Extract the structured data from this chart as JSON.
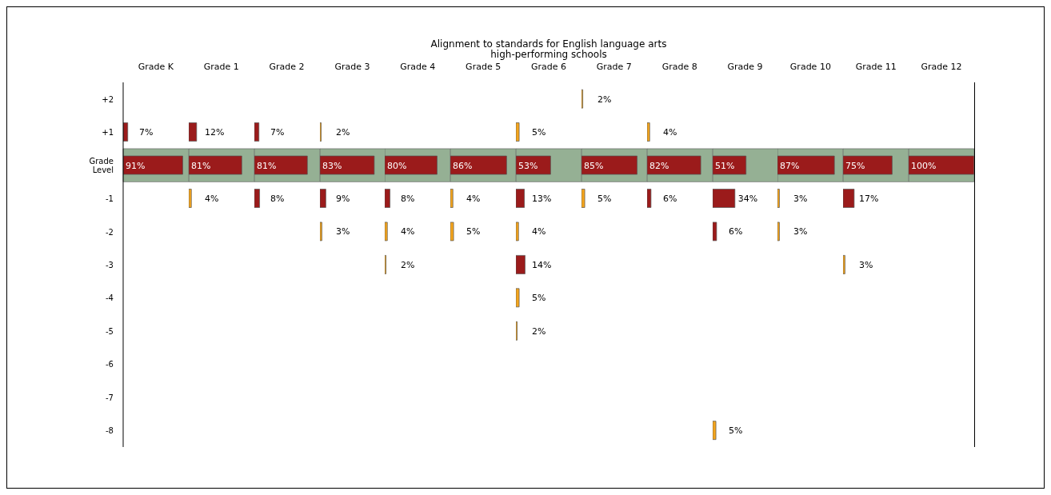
{
  "chart_data": [
    {
      "type": "bar",
      "orientation": "horizontal",
      "xlabel": "Grade K",
      "categories": [
        "+2",
        "+1",
        "Grade Level",
        "-1",
        "-2",
        "-3",
        "-4",
        "-5",
        "-6",
        "-7",
        "-8"
      ],
      "values": [
        null,
        7,
        91,
        null,
        null,
        null,
        null,
        null,
        null,
        null,
        null
      ],
      "colors": [
        null,
        "#9b1b1b",
        "#9b1b1b",
        null,
        null,
        null,
        null,
        null,
        null,
        null,
        null
      ],
      "value_labels": [
        null,
        "7%",
        "91%",
        null,
        null,
        null,
        null,
        null,
        null,
        null,
        null
      ],
      "tick_labels": "y",
      "bands": [
        {
          "axis": "y",
          "from": "Grade Level",
          "to": "Grade Level",
          "color": "#95b094"
        }
      ]
    },
    {
      "type": "bar",
      "orientation": "horizontal",
      "xlabel": "Grade 1",
      "categories": [
        "+2",
        "+1",
        "Grade Level",
        "-1",
        "-2",
        "-3",
        "-4",
        "-5",
        "-6",
        "-7",
        "-8"
      ],
      "values": [
        null,
        12,
        81,
        4,
        null,
        null,
        null,
        null,
        null,
        null,
        null
      ],
      "colors": [
        null,
        "#9b1b1b",
        "#9b1b1b",
        "#f5a51c",
        null,
        null,
        null,
        null,
        null,
        null,
        null
      ],
      "value_labels": [
        null,
        "12%",
        "81%",
        "4%",
        null,
        null,
        null,
        null,
        null,
        null,
        null
      ],
      "tick_labels": false,
      "bands": [
        {
          "axis": "y",
          "from": "Grade Level",
          "to": "Grade Level",
          "color": "#95b094"
        }
      ]
    },
    {
      "type": "bar",
      "orientation": "horizontal",
      "xlabel": "Grade 2",
      "categories": [
        "+2",
        "+1",
        "Grade Level",
        "-1",
        "-2",
        "-3",
        "-4",
        "-5",
        "-6",
        "-7",
        "-8"
      ],
      "values": [
        null,
        7,
        81,
        8,
        null,
        null,
        null,
        null,
        null,
        null,
        null
      ],
      "colors": [
        null,
        "#9b1b1b",
        "#9b1b1b",
        "#9b1b1b",
        null,
        null,
        null,
        null,
        null,
        null,
        null
      ],
      "value_labels": [
        null,
        "7%",
        "81%",
        "8%",
        null,
        null,
        null,
        null,
        null,
        null,
        null
      ],
      "tick_labels": false,
      "bands": [
        {
          "axis": "y",
          "from": "Grade Level",
          "to": "Grade Level",
          "color": "#95b094"
        }
      ]
    },
    {
      "type": "bar",
      "orientation": "horizontal",
      "xlabel": "Grade 3",
      "categories": [
        "+2",
        "+1",
        "Grade Level",
        "-1",
        "-2",
        "-3",
        "-4",
        "-5",
        "-6",
        "-7",
        "-8"
      ],
      "values": [
        null,
        2,
        83,
        9,
        3,
        null,
        null,
        null,
        null,
        null,
        null
      ],
      "colors": [
        null,
        "#f5a51c",
        "#9b1b1b",
        "#9b1b1b",
        "#f5a51c",
        null,
        null,
        null,
        null,
        null,
        null
      ],
      "value_labels": [
        null,
        "2%",
        "83%",
        "9%",
        "3%",
        null,
        null,
        null,
        null,
        null,
        null
      ],
      "tick_labels": false,
      "bands": [
        {
          "axis": "y",
          "from": "Grade Level",
          "to": "Grade Level",
          "color": "#95b094"
        }
      ]
    },
    {
      "type": "bar",
      "orientation": "horizontal",
      "xlabel": "Grade 4",
      "categories": [
        "+2",
        "+1",
        "Grade Level",
        "-1",
        "-2",
        "-3",
        "-4",
        "-5",
        "-6",
        "-7",
        "-8"
      ],
      "values": [
        null,
        null,
        80,
        8,
        4,
        2,
        null,
        null,
        null,
        null,
        null
      ],
      "colors": [
        null,
        null,
        "#9b1b1b",
        "#9b1b1b",
        "#f5a51c",
        "#f5a51c",
        null,
        null,
        null,
        null,
        null
      ],
      "value_labels": [
        null,
        null,
        "80%",
        "8%",
        "4%",
        "2%",
        null,
        null,
        null,
        null,
        null
      ],
      "tick_labels": false,
      "bands": [
        {
          "axis": "y",
          "from": "Grade Level",
          "to": "Grade Level",
          "color": "#95b094"
        }
      ]
    },
    {
      "type": "bar",
      "orientation": "horizontal",
      "xlabel": "Grade 5",
      "categories": [
        "+2",
        "+1",
        "Grade Level",
        "-1",
        "-2",
        "-3",
        "-4",
        "-5",
        "-6",
        "-7",
        "-8"
      ],
      "values": [
        null,
        null,
        86,
        4,
        5,
        null,
        null,
        null,
        null,
        null,
        null
      ],
      "colors": [
        null,
        null,
        "#9b1b1b",
        "#f5a51c",
        "#f5a51c",
        null,
        null,
        null,
        null,
        null,
        null
      ],
      "value_labels": [
        null,
        null,
        "86%",
        "4%",
        "5%",
        null,
        null,
        null,
        null,
        null,
        null
      ],
      "tick_labels": false,
      "bands": [
        {
          "axis": "y",
          "from": "Grade Level",
          "to": "Grade Level",
          "color": "#95b094"
        }
      ]
    },
    {
      "type": "bar",
      "orientation": "horizontal",
      "title": "Alignment to standards for English language arts",
      "subtitle": "high-performing schools",
      "xlabel": "Grade 6",
      "categories": [
        "+2",
        "+1",
        "Grade Level",
        "-1",
        "-2",
        "-3",
        "-4",
        "-5",
        "-6",
        "-7",
        "-8"
      ],
      "values": [
        null,
        5,
        53,
        13,
        4,
        14,
        5,
        2,
        null,
        null,
        null
      ],
      "colors": [
        null,
        "#f5a51c",
        "#9b1b1b",
        "#9b1b1b",
        "#f5a51c",
        "#9b1b1b",
        "#f5a51c",
        "#f5a51c",
        null,
        null,
        null
      ],
      "value_labels": [
        null,
        "5%",
        "53%",
        "13%",
        "4%",
        "14%",
        "5%",
        "2%",
        null,
        null,
        null
      ],
      "tick_labels": false,
      "bands": [
        {
          "axis": "y",
          "from": "Grade Level",
          "to": "Grade Level",
          "color": "#95b094"
        }
      ]
    },
    {
      "type": "bar",
      "orientation": "horizontal",
      "xlabel": "Grade 7",
      "categories": [
        "+2",
        "+1",
        "Grade Level",
        "-1",
        "-2",
        "-3",
        "-4",
        "-5",
        "-6",
        "-7",
        "-8"
      ],
      "values": [
        2,
        null,
        85,
        5,
        null,
        null,
        null,
        null,
        null,
        null,
        null
      ],
      "colors": [
        "#f5a51c",
        null,
        "#9b1b1b",
        "#f5a51c",
        null,
        null,
        null,
        null,
        null,
        null,
        null
      ],
      "value_labels": [
        "2%",
        null,
        "85%",
        "5%",
        null,
        null,
        null,
        null,
        null,
        null,
        null
      ],
      "tick_labels": false,
      "bands": [
        {
          "axis": "y",
          "from": "Grade Level",
          "to": "Grade Level",
          "color": "#95b094"
        }
      ]
    },
    {
      "type": "bar",
      "orientation": "horizontal",
      "xlabel": "Grade 8",
      "categories": [
        "+2",
        "+1",
        "Grade Level",
        "-1",
        "-2",
        "-3",
        "-4",
        "-5",
        "-6",
        "-7",
        "-8"
      ],
      "values": [
        null,
        4,
        82,
        6,
        null,
        null,
        null,
        null,
        null,
        null,
        null
      ],
      "colors": [
        null,
        "#f5a51c",
        "#9b1b1b",
        "#9b1b1b",
        null,
        null,
        null,
        null,
        null,
        null,
        null
      ],
      "value_labels": [
        null,
        "4%",
        "82%",
        "6%",
        null,
        null,
        null,
        null,
        null,
        null,
        null
      ],
      "tick_labels": false,
      "bands": [
        {
          "axis": "y",
          "from": "Grade Level",
          "to": "Grade Level",
          "color": "#95b094"
        }
      ]
    },
    {
      "type": "bar",
      "orientation": "horizontal",
      "xlabel": "Grade 9",
      "categories": [
        "+2",
        "+1",
        "Grade Level",
        "-1",
        "-2",
        "-3",
        "-4",
        "-5",
        "-6",
        "-7",
        "-8"
      ],
      "values": [
        null,
        null,
        51,
        34,
        6,
        null,
        null,
        null,
        null,
        null,
        5
      ],
      "colors": [
        null,
        null,
        "#9b1b1b",
        "#9b1b1b",
        "#9b1b1b",
        null,
        null,
        null,
        null,
        null,
        "#f5a51c"
      ],
      "value_labels": [
        null,
        null,
        "51%",
        "34%",
        "6%",
        null,
        null,
        null,
        null,
        null,
        "5%"
      ],
      "tick_labels": false,
      "bands": [
        {
          "axis": "y",
          "from": "Grade Level",
          "to": "Grade Level",
          "color": "#95b094"
        }
      ]
    },
    {
      "type": "bar",
      "orientation": "horizontal",
      "xlabel": "Grade 10",
      "categories": [
        "+2",
        "+1",
        "Grade Level",
        "-1",
        "-2",
        "-3",
        "-4",
        "-5",
        "-6",
        "-7",
        "-8"
      ],
      "values": [
        null,
        null,
        87,
        3,
        3,
        null,
        null,
        null,
        null,
        null,
        null
      ],
      "colors": [
        null,
        null,
        "#9b1b1b",
        "#f5a51c",
        "#f5a51c",
        null,
        null,
        null,
        null,
        null,
        null
      ],
      "value_labels": [
        null,
        null,
        "87%",
        "3%",
        "3%",
        null,
        null,
        null,
        null,
        null,
        null
      ],
      "tick_labels": false,
      "bands": [
        {
          "axis": "y",
          "from": "Grade Level",
          "to": "Grade Level",
          "color": "#95b094"
        }
      ]
    },
    {
      "type": "bar",
      "orientation": "horizontal",
      "xlabel": "Grade 11",
      "categories": [
        "+2",
        "+1",
        "Grade Level",
        "-1",
        "-2",
        "-3",
        "-4",
        "-5",
        "-6",
        "-7",
        "-8"
      ],
      "values": [
        null,
        null,
        75,
        17,
        null,
        3,
        null,
        null,
        null,
        null,
        null
      ],
      "colors": [
        null,
        null,
        "#9b1b1b",
        "#9b1b1b",
        null,
        "#f5a51c",
        null,
        null,
        null,
        null,
        null
      ],
      "value_labels": [
        null,
        null,
        "75%",
        "17%",
        null,
        "3%",
        null,
        null,
        null,
        null,
        null
      ],
      "tick_labels": false,
      "bands": [
        {
          "axis": "y",
          "from": "Grade Level",
          "to": "Grade Level",
          "color": "#95b094"
        }
      ]
    },
    {
      "type": "bar",
      "orientation": "horizontal",
      "xlabel": "Grade 12",
      "categories": [
        "+2",
        "+1",
        "Grade Level",
        "-1",
        "-2",
        "-3",
        "-4",
        "-5",
        "-6",
        "-7",
        "-8"
      ],
      "values": [
        null,
        null,
        100,
        null,
        null,
        null,
        null,
        null,
        null,
        null,
        null
      ],
      "colors": [
        null,
        null,
        "#9b1b1b",
        null,
        null,
        null,
        null,
        null,
        null,
        null,
        null
      ],
      "value_labels": [
        null,
        null,
        "100%",
        null,
        null,
        null,
        null,
        null,
        null,
        null,
        null
      ],
      "tick_labels": false,
      "bands": [
        {
          "axis": "y",
          "from": "Grade Level",
          "to": "Grade Level",
          "color": "#95b094"
        }
      ]
    }
  ]
}
